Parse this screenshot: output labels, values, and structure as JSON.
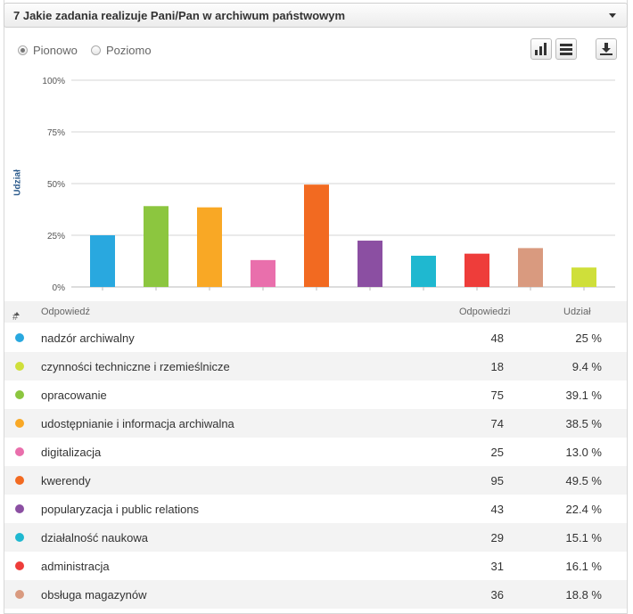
{
  "question": {
    "title": "7 Jakie zadania realizuje Pani/Pan w archiwum państwowym"
  },
  "orientation": {
    "options": [
      "Pionowo",
      "Poziomo"
    ],
    "selected": "Pionowo"
  },
  "toolbar": {
    "icons": [
      "bar-chart-icon",
      "table-icon",
      "download-icon"
    ]
  },
  "table": {
    "headers": {
      "index": "#",
      "answer": "Odpowiedź",
      "count": "Odpowiedzi",
      "share": "Udział"
    },
    "rows": [
      {
        "label": "nadzór archiwalny",
        "count": "48",
        "share": "25 %",
        "color": "#29a8df"
      },
      {
        "label": "czynności techniczne i rzemieślnicze",
        "count": "18",
        "share": "9.4 %",
        "color": "#cfdf3a"
      },
      {
        "label": "opracowanie",
        "count": "75",
        "share": "39.1 %",
        "color": "#8cc63f"
      },
      {
        "label": "udostępnianie i informacja archiwalna",
        "count": "74",
        "share": "38.5 %",
        "color": "#f9a825"
      },
      {
        "label": "digitalizacja",
        "count": "25",
        "share": "13.0 %",
        "color": "#e96fac"
      },
      {
        "label": "kwerendy",
        "count": "95",
        "share": "49.5 %",
        "color": "#f26a21"
      },
      {
        "label": "popularyzacja i public relations",
        "count": "43",
        "share": "22.4 %",
        "color": "#8b4fa2"
      },
      {
        "label": "działalność naukowa",
        "count": "29",
        "share": "15.1 %",
        "color": "#1fb8d0"
      },
      {
        "label": "administracja",
        "count": "31",
        "share": "16.1 %",
        "color": "#ee3d3a"
      },
      {
        "label": "obsługa magazynów",
        "count": "36",
        "share": "18.8 %",
        "color": "#d99a7f"
      }
    ]
  },
  "chart_data": {
    "type": "bar",
    "ylabel": "Udział",
    "ylim": [
      0,
      100
    ],
    "yticks": [
      "0%",
      "25%",
      "50%",
      "75%",
      "100%"
    ],
    "grid": true,
    "values": [
      25,
      39.1,
      38.5,
      13.0,
      49.5,
      22.4,
      15.1,
      16.1,
      18.8,
      9.4
    ],
    "colors": [
      "#29a8df",
      "#8cc63f",
      "#f9a825",
      "#e96fac",
      "#f26a21",
      "#8b4fa2",
      "#1fb8d0",
      "#ee3d3a",
      "#d99a7f",
      "#cfdf3a"
    ]
  }
}
